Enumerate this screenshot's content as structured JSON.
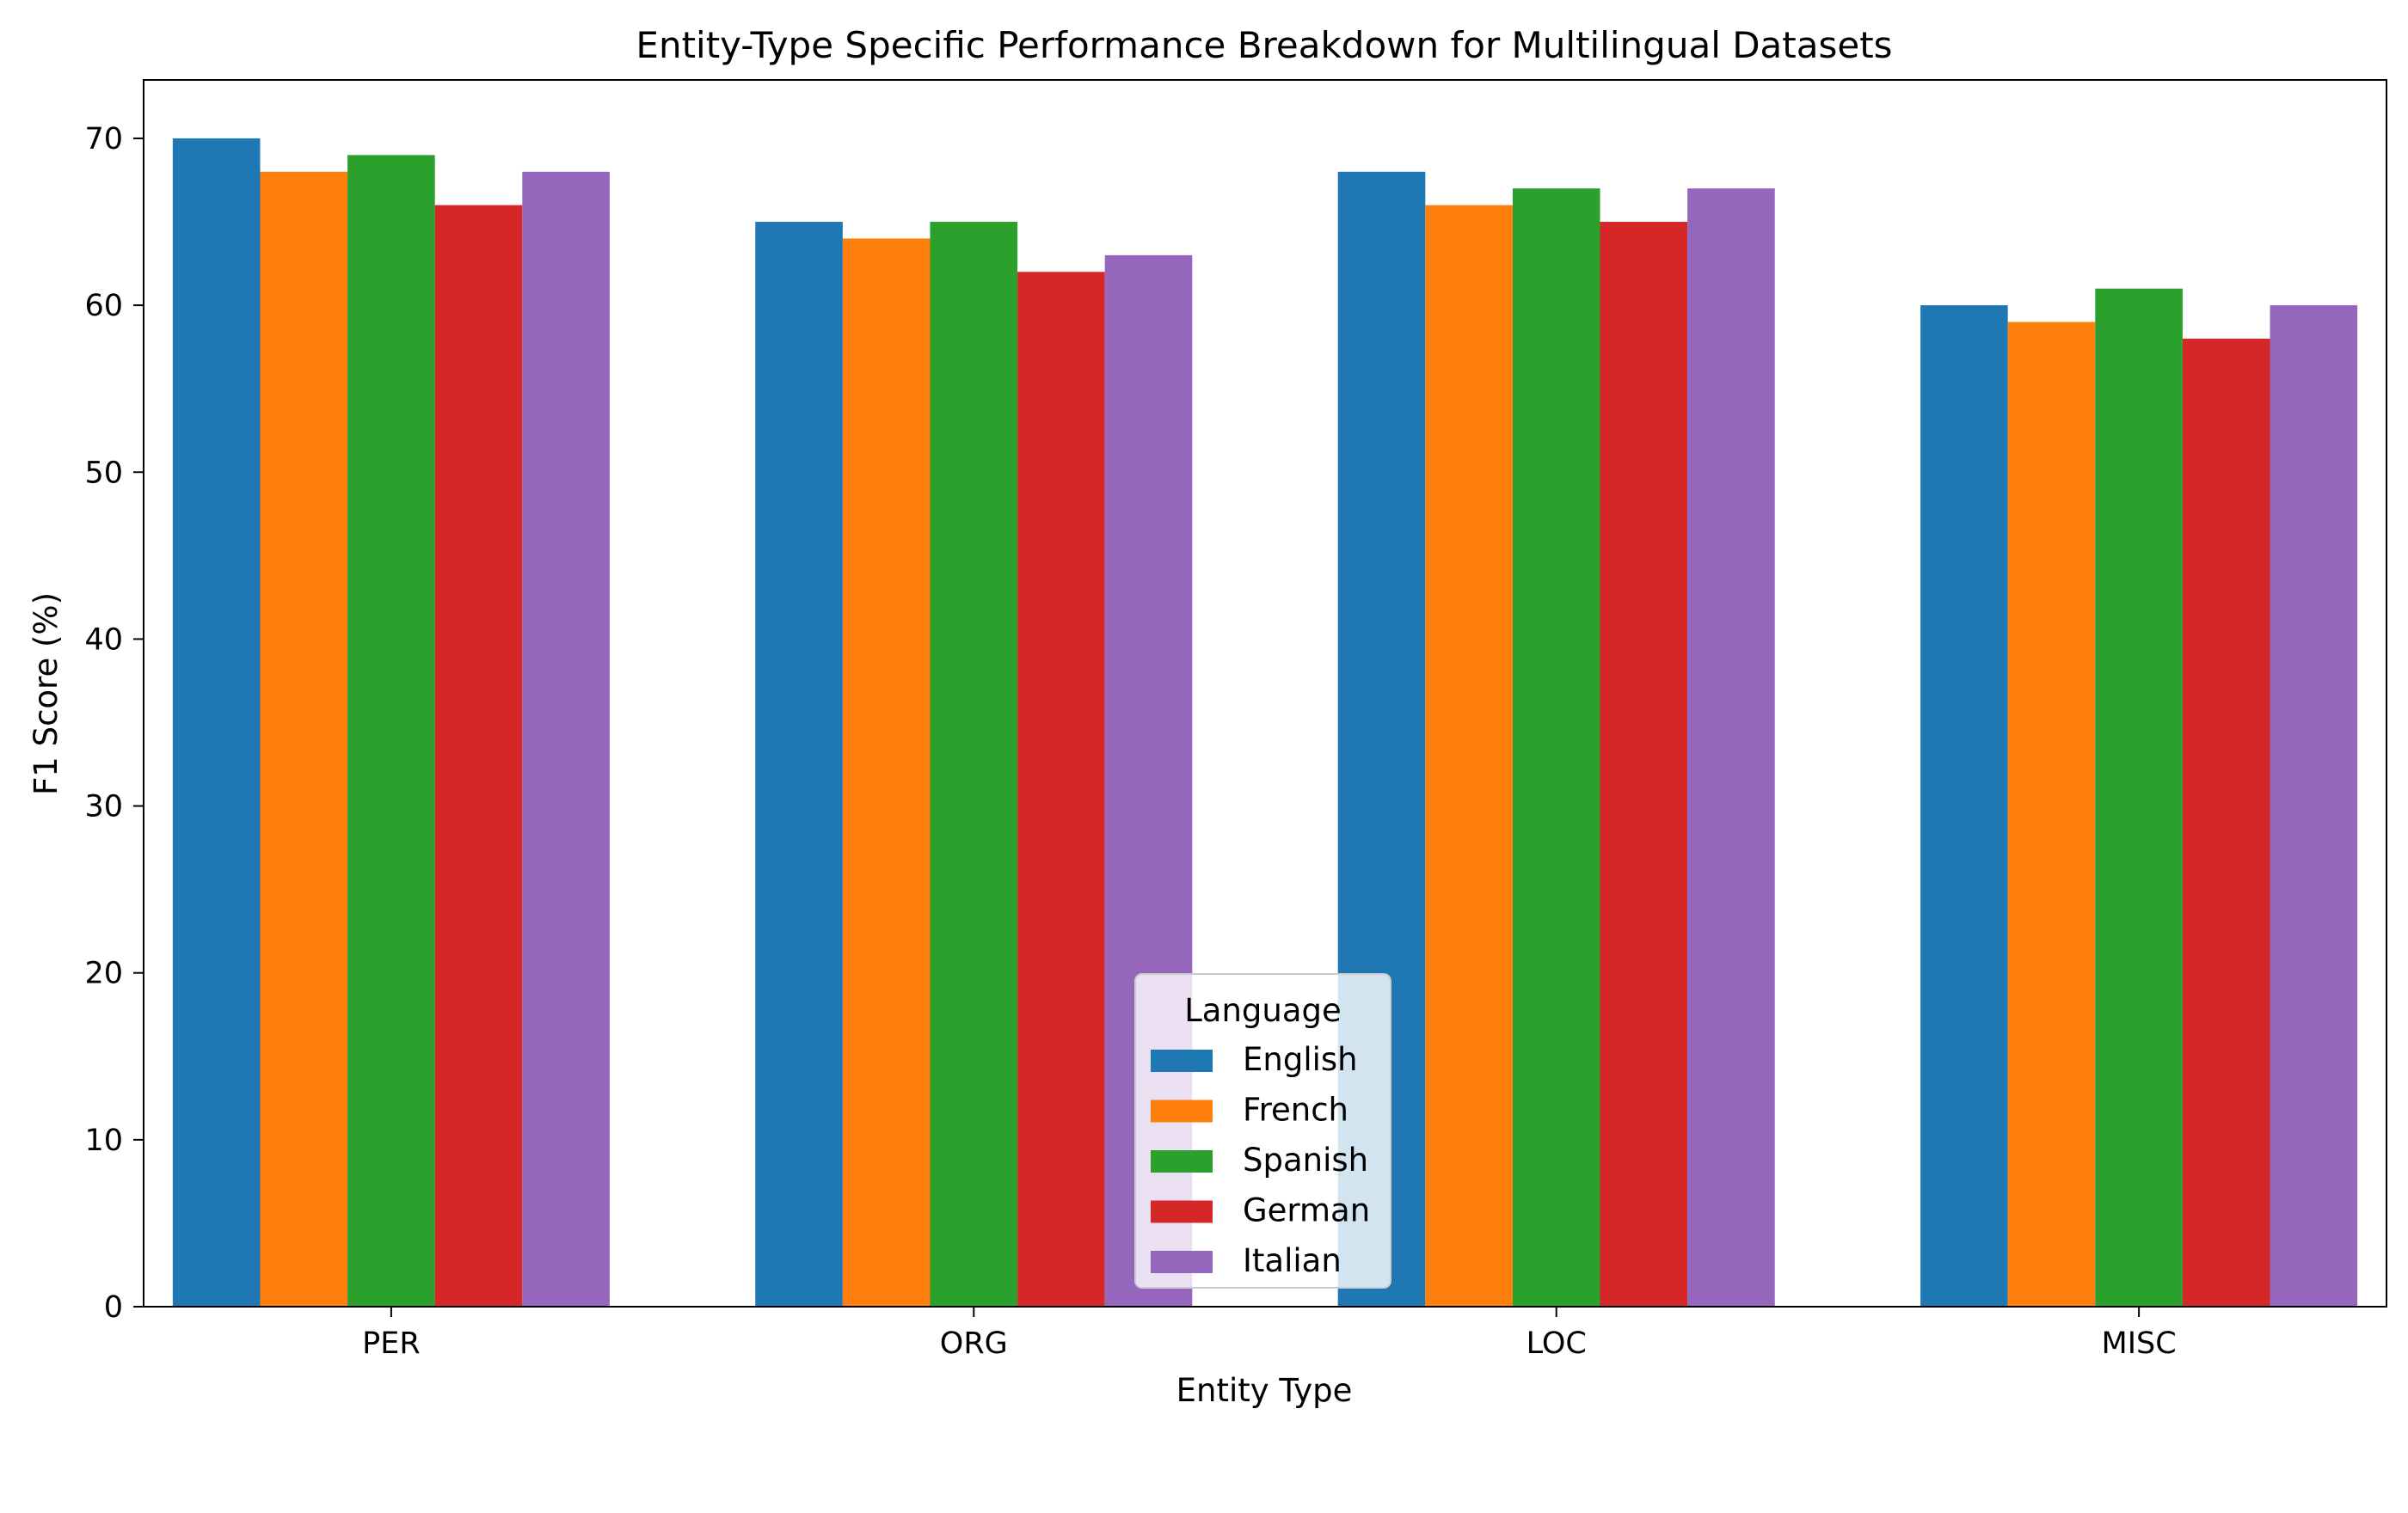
{
  "chart_data": {
    "type": "bar",
    "title": "Entity-Type Specific Performance Breakdown for Multilingual Datasets",
    "xlabel": "Entity Type",
    "ylabel": "F1 Score (%)",
    "categories": [
      "PER",
      "ORG",
      "LOC",
      "MISC"
    ],
    "series": [
      {
        "name": "English",
        "color": "#1f77b4",
        "values": [
          70,
          65,
          68,
          60
        ]
      },
      {
        "name": "French",
        "color": "#ff7f0e",
        "values": [
          68,
          64,
          66,
          59
        ]
      },
      {
        "name": "Spanish",
        "color": "#2ca02c",
        "values": [
          69,
          65,
          67,
          61
        ]
      },
      {
        "name": "German",
        "color": "#d62728",
        "values": [
          66,
          62,
          65,
          58
        ]
      },
      {
        "name": "Italian",
        "color": "#9467bd",
        "values": [
          68,
          63,
          67,
          60
        ]
      }
    ],
    "ylim": [
      0,
      73.5
    ],
    "yticks": [
      0,
      10,
      20,
      30,
      40,
      50,
      60,
      70
    ],
    "legend": {
      "title": "Language",
      "placement": "lower-center"
    },
    "grid": false
  }
}
